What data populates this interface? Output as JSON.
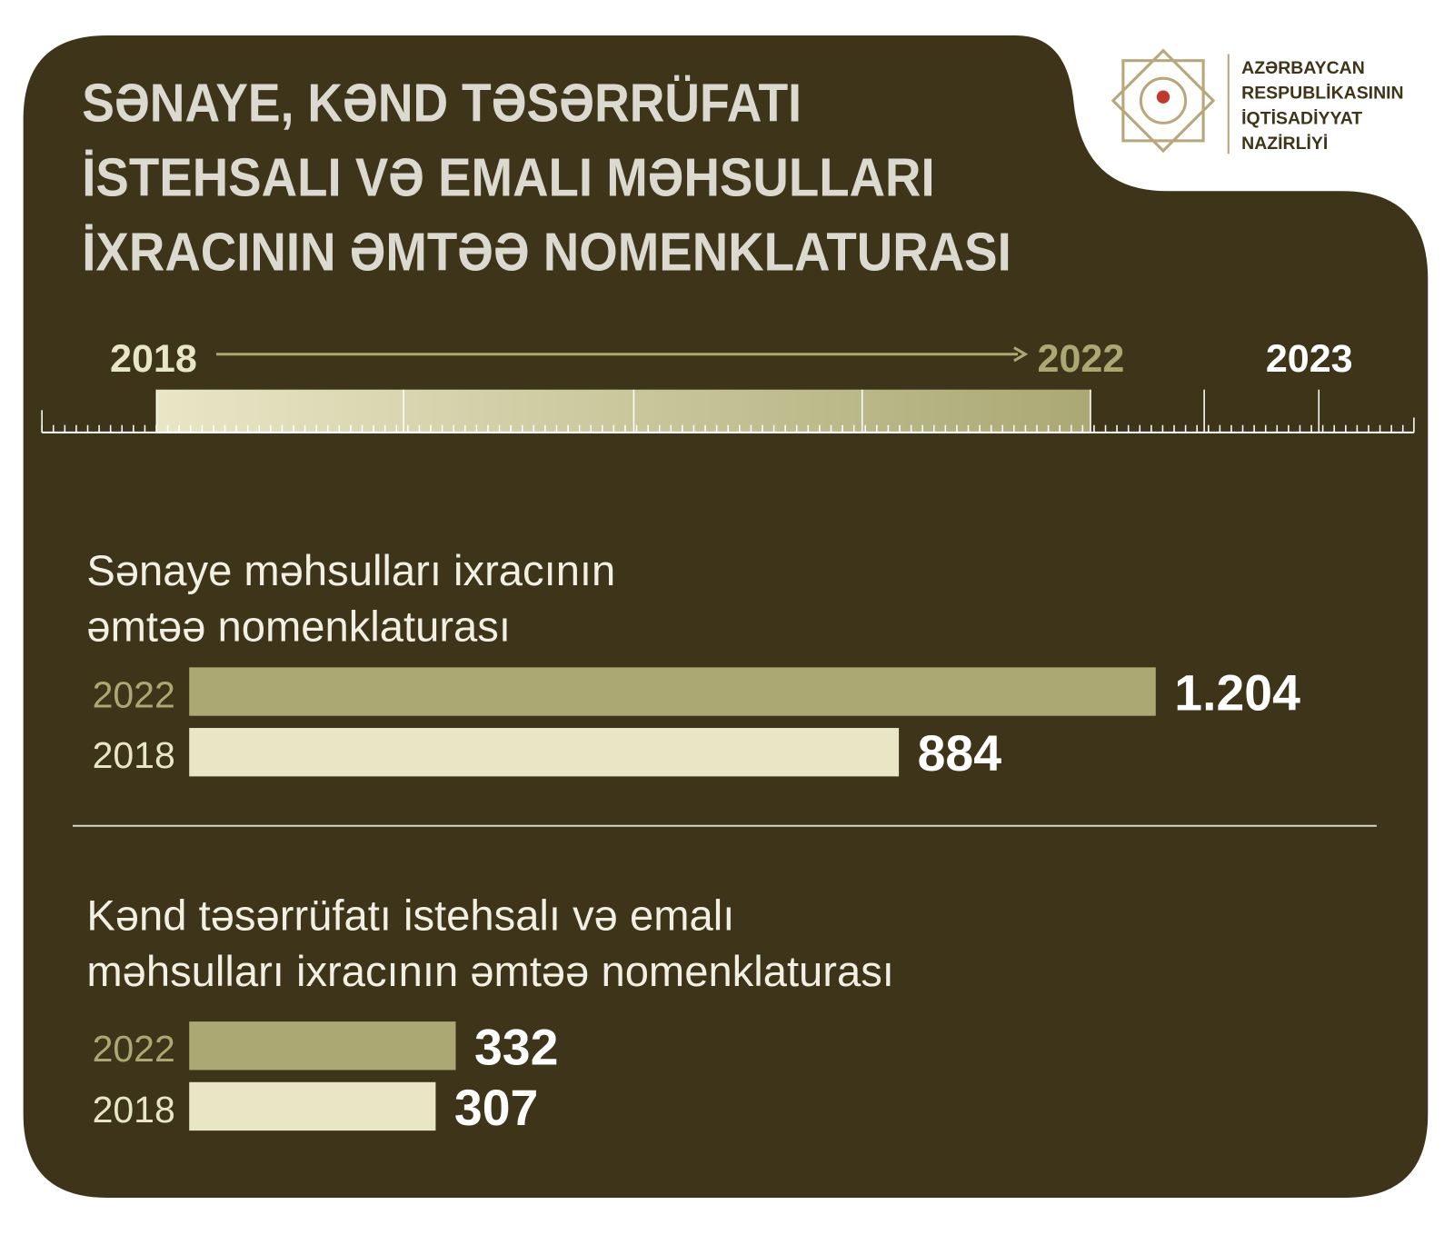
{
  "header": {
    "title": [
      "SƏNAYE, KƏND TƏSƏRRÜFATI",
      "İSTEHSALI VƏ EMALI MƏHSULLARI",
      "İXRACININ ƏMTƏƏ NOMENKLATURASI"
    ],
    "logo_text": [
      "AZƏRBAYCAN",
      "RESPUBLİKASININ",
      "İQTİSADİYYAT",
      "NAZİRLİYİ"
    ]
  },
  "timeline": {
    "labels": [
      "2018",
      "2022",
      "2023"
    ]
  },
  "chart_data": [
    {
      "type": "bar",
      "orientation": "horizontal",
      "title": [
        "Sənaye məhsulları ixracının",
        "əmtəə nomenklaturası"
      ],
      "categories": [
        "2022",
        "2018"
      ],
      "values": [
        1204,
        884
      ],
      "value_labels": [
        "1.204",
        "884"
      ],
      "colors": [
        "#aba874",
        "#e9e6c6"
      ]
    },
    {
      "type": "bar",
      "orientation": "horizontal",
      "title": [
        "Kənd təsərrüfatı istehsalı və emalı",
        "məhsulları ixracının əmtəə nomenklaturası"
      ],
      "categories": [
        "2022",
        "2018"
      ],
      "values": [
        332,
        307
      ],
      "colors": [
        "#aba874",
        "#e9e6c6"
      ]
    }
  ]
}
